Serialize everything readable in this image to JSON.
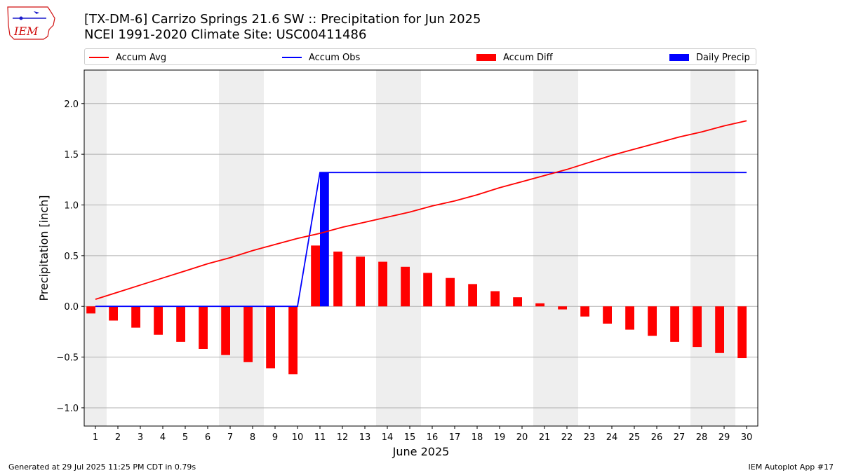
{
  "header": {
    "title_line1": "[TX-DM-6] Carrizo Springs 21.6 SW :: Precipitation for Jun 2025",
    "title_line2": "NCEI 1991-2020 Climate Site: USC00411486"
  },
  "logo": {
    "text": "IEM",
    "color": "#d01010",
    "accent": "#1a1acc"
  },
  "legend": {
    "accum_avg": "Accum Avg",
    "accum_obs": "Accum Obs",
    "accum_diff": "Accum Diff",
    "daily_precip": "Daily Precip"
  },
  "footer": {
    "left": "Generated at 29 Jul 2025 11:25 PM CDT in 0.79s",
    "right": "IEM Autoplot App #17"
  },
  "colors": {
    "avg": "#ff0000",
    "obs": "#0000ff",
    "diff": "#ff0000",
    "daily": "#0000ff",
    "weekend": "#eeeeee",
    "grid": "#b0b0b0"
  },
  "chart_data": {
    "type": "bar",
    "xlabel": "June 2025",
    "ylabel": "Precipitation [inch]",
    "xlim": [
      0.5,
      30.5
    ],
    "ylim": [
      -1.18,
      2.33
    ],
    "yticks": [
      -1.0,
      -0.5,
      0.0,
      0.5,
      1.0,
      1.5,
      2.0
    ],
    "ytick_labels": [
      "−1.0",
      "−0.5",
      "0.0",
      "0.5",
      "1.0",
      "1.5",
      "2.0"
    ],
    "grid": "horizontal",
    "legend_position": "top",
    "days": [
      1,
      2,
      3,
      4,
      5,
      6,
      7,
      8,
      9,
      10,
      11,
      12,
      13,
      14,
      15,
      16,
      17,
      18,
      19,
      20,
      21,
      22,
      23,
      24,
      25,
      26,
      27,
      28,
      29,
      30
    ],
    "weekend_days": [
      1,
      7,
      8,
      14,
      15,
      21,
      22,
      28,
      29
    ],
    "series": [
      {
        "name": "Accum Avg",
        "kind": "line",
        "values": [
          0.07,
          0.14,
          0.21,
          0.28,
          0.35,
          0.42,
          0.48,
          0.55,
          0.61,
          0.67,
          0.72,
          0.78,
          0.83,
          0.88,
          0.93,
          0.99,
          1.04,
          1.1,
          1.17,
          1.23,
          1.29,
          1.35,
          1.42,
          1.49,
          1.55,
          1.61,
          1.67,
          1.72,
          1.78,
          1.83
        ]
      },
      {
        "name": "Accum Obs",
        "kind": "line",
        "values": [
          0,
          0,
          0,
          0,
          0,
          0,
          0,
          0,
          0,
          0,
          1.32,
          1.32,
          1.32,
          1.32,
          1.32,
          1.32,
          1.32,
          1.32,
          1.32,
          1.32,
          1.32,
          1.32,
          1.32,
          1.32,
          1.32,
          1.32,
          1.32,
          1.32,
          1.32,
          1.32
        ]
      },
      {
        "name": "Accum Diff",
        "kind": "bar",
        "values": [
          -0.07,
          -0.14,
          -0.21,
          -0.28,
          -0.35,
          -0.42,
          -0.48,
          -0.55,
          -0.61,
          -0.67,
          0.6,
          0.54,
          0.49,
          0.44,
          0.39,
          0.33,
          0.28,
          0.22,
          0.15,
          0.09,
          0.03,
          -0.03,
          -0.1,
          -0.17,
          -0.23,
          -0.29,
          -0.35,
          -0.4,
          -0.46,
          -0.51
        ]
      },
      {
        "name": "Daily Precip",
        "kind": "bar",
        "values": [
          0,
          0,
          0,
          0,
          0,
          0,
          0,
          0,
          0,
          0,
          1.32,
          0,
          0,
          0,
          0,
          0,
          0,
          0,
          0,
          0,
          0,
          0,
          0,
          0,
          0,
          0,
          0,
          0,
          0,
          0
        ]
      }
    ]
  }
}
